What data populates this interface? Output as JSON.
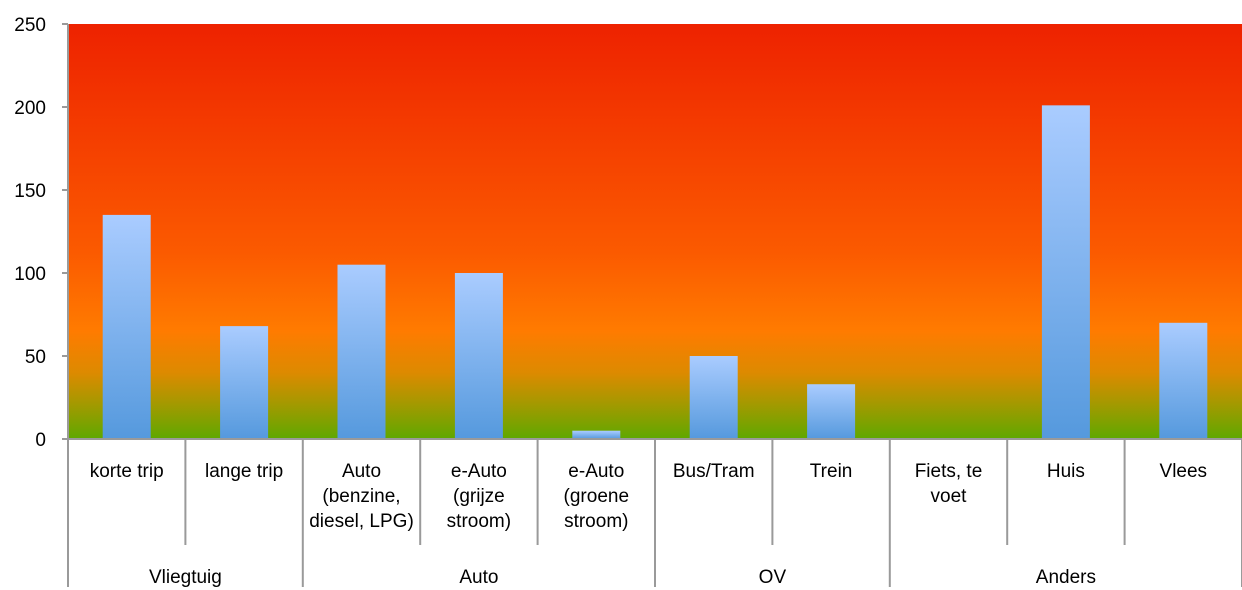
{
  "chart_data": {
    "type": "bar",
    "categories": [
      "korte trip",
      "lange trip",
      "Auto (benzine, diesel, LPG)",
      "e-Auto (grijze stroom)",
      "e-Auto (groene stroom)",
      "Bus/Tram",
      "Trein",
      "Fiets, te voet",
      "Huis",
      "Vlees"
    ],
    "category_lines": [
      [
        "korte trip"
      ],
      [
        "lange trip"
      ],
      [
        "Auto",
        "(benzine,",
        "diesel, LPG)"
      ],
      [
        "e-Auto",
        "(grijze",
        "stroom)"
      ],
      [
        "e-Auto",
        "(groene",
        "stroom)"
      ],
      [
        "Bus/Tram"
      ],
      [
        "Trein"
      ],
      [
        "Fiets, te",
        "voet"
      ],
      [
        "Huis"
      ],
      [
        "Vlees"
      ]
    ],
    "groups": [
      {
        "label": "Vliegtuig",
        "span": 2
      },
      {
        "label": "Auto",
        "span": 3
      },
      {
        "label": "OV",
        "span": 2
      },
      {
        "label": "Anders",
        "span": 3
      }
    ],
    "values": [
      135,
      68,
      105,
      100,
      5,
      50,
      33,
      0,
      201,
      70
    ],
    "ylim": [
      0,
      250
    ],
    "yticks": [
      0,
      50,
      100,
      150,
      200,
      250
    ],
    "title": "",
    "xlabel": "",
    "ylabel": "",
    "grid": false,
    "legend": "none",
    "colors": {
      "background_top": "#ee2200",
      "background_mid": "#ff7b00",
      "background_bottom": "#5ea800",
      "bar_top": "#aaccff",
      "bar_bottom": "#5599dd",
      "axis": "#9a9a9a"
    }
  }
}
